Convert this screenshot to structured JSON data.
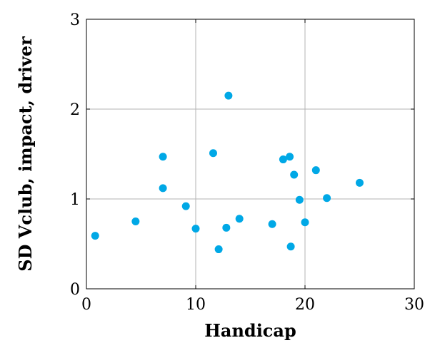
{
  "chart_data": {
    "type": "scatter",
    "xlabel": "Handicap",
    "ylabel": "SD Vclub, impact, driver",
    "xlim": [
      0,
      30
    ],
    "ylim": [
      0,
      3
    ],
    "xticks": [
      0,
      10,
      20,
      30
    ],
    "yticks": [
      0,
      1,
      2,
      3
    ],
    "grid": true,
    "marker_color": "#00a8e6",
    "points": [
      {
        "x": 0.8,
        "y": 0.59
      },
      {
        "x": 4.5,
        "y": 0.75
      },
      {
        "x": 7.0,
        "y": 1.47
      },
      {
        "x": 7.0,
        "y": 1.12
      },
      {
        "x": 9.1,
        "y": 0.92
      },
      {
        "x": 10.0,
        "y": 0.67
      },
      {
        "x": 11.6,
        "y": 1.51
      },
      {
        "x": 12.1,
        "y": 0.44
      },
      {
        "x": 12.8,
        "y": 0.68
      },
      {
        "x": 13.0,
        "y": 2.15
      },
      {
        "x": 14.0,
        "y": 0.78
      },
      {
        "x": 17.0,
        "y": 0.72
      },
      {
        "x": 18.0,
        "y": 1.44
      },
      {
        "x": 18.6,
        "y": 1.47
      },
      {
        "x": 18.7,
        "y": 0.47
      },
      {
        "x": 19.0,
        "y": 1.27
      },
      {
        "x": 19.5,
        "y": 0.99
      },
      {
        "x": 20.0,
        "y": 0.74
      },
      {
        "x": 21.0,
        "y": 1.32
      },
      {
        "x": 22.0,
        "y": 1.01
      },
      {
        "x": 25.0,
        "y": 1.18
      }
    ]
  }
}
